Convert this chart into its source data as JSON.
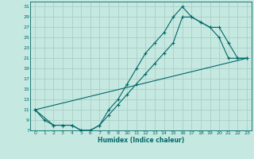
{
  "title": "",
  "xlabel": "Humidex (Indice chaleur)",
  "bg_color": "#c5e8e0",
  "grid_color": "#aacfc8",
  "line_color": "#006868",
  "xlim": [
    -0.5,
    23.5
  ],
  "ylim": [
    7,
    32
  ],
  "xticks": [
    0,
    1,
    2,
    3,
    4,
    5,
    6,
    7,
    8,
    9,
    10,
    11,
    12,
    13,
    14,
    15,
    16,
    17,
    18,
    19,
    20,
    21,
    22,
    23
  ],
  "yticks": [
    7,
    9,
    11,
    13,
    15,
    17,
    19,
    21,
    23,
    25,
    27,
    29,
    31
  ],
  "curve1_x": [
    0,
    1,
    2,
    3,
    4,
    5,
    6,
    7,
    8,
    9,
    10,
    11,
    12,
    13,
    14,
    15,
    16,
    17,
    18,
    19,
    20,
    21,
    22,
    23
  ],
  "curve1_y": [
    11,
    9,
    8,
    8,
    8,
    7,
    7,
    8,
    11,
    13,
    16,
    19,
    22,
    24,
    26,
    29,
    31,
    29,
    28,
    27,
    25,
    21,
    21,
    21
  ],
  "curve2_x": [
    0,
    2,
    3,
    4,
    5,
    6,
    7,
    8,
    9,
    10,
    11,
    12,
    13,
    14,
    15,
    16,
    17,
    18,
    19,
    20,
    21,
    22,
    23
  ],
  "curve2_y": [
    11,
    8,
    8,
    8,
    7,
    7,
    8,
    10,
    12,
    14,
    16,
    18,
    20,
    22,
    24,
    29,
    29,
    28,
    27,
    27,
    24,
    21,
    21
  ],
  "curve3_x": [
    0,
    23
  ],
  "curve3_y": [
    11,
    21
  ]
}
